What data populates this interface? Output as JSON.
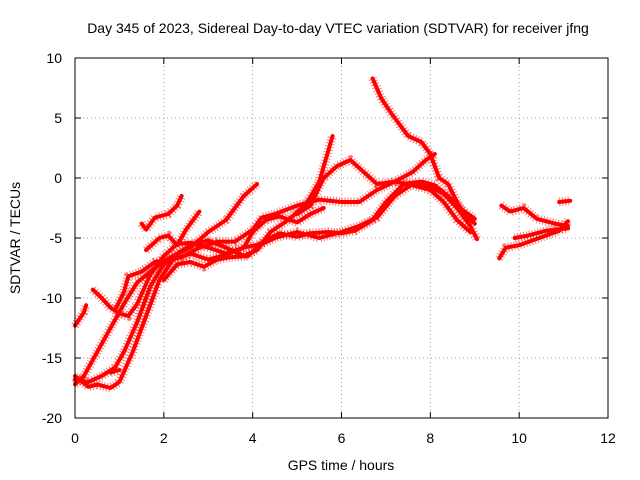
{
  "chart_data": {
    "type": "scatter",
    "title": "Day 345 of 2023, Sidereal Day-to-day VTEC variation (SDTVAR) for receiver jfng",
    "xlabel": "GPS time / hours",
    "ylabel": "SDTVAR / TECUs",
    "xlim": [
      0,
      12
    ],
    "ylim": [
      -20,
      10
    ],
    "xticks": [
      "0",
      "2",
      "4",
      "6",
      "8",
      "10",
      "12"
    ],
    "yticks": [
      "-20",
      "-15",
      "-10",
      "-5",
      "0",
      "5",
      "10"
    ],
    "grid": true,
    "marker": "plus",
    "color": "#ff0000",
    "series": [
      {
        "name": "s1",
        "points": [
          [
            0.0,
            -12.3
          ],
          [
            0.2,
            -11.2
          ],
          [
            0.25,
            -10.6
          ]
        ]
      },
      {
        "name": "s2",
        "points": [
          [
            0.0,
            -16.8
          ],
          [
            0.3,
            -17.0
          ],
          [
            0.6,
            -16.5
          ],
          [
            0.9,
            -15.8
          ],
          [
            1.1,
            -14.5
          ],
          [
            1.4,
            -12.0
          ],
          [
            1.7,
            -9.0
          ],
          [
            2.0,
            -7.2
          ],
          [
            2.3,
            -6.3
          ],
          [
            2.6,
            -5.6
          ],
          [
            3.0,
            -5.2
          ],
          [
            3.4,
            -5.8
          ],
          [
            3.8,
            -6.5
          ],
          [
            4.1,
            -6.0
          ],
          [
            4.4,
            -4.5
          ],
          [
            4.8,
            -3.5
          ],
          [
            5.2,
            -2.2
          ],
          [
            5.5,
            -0.3
          ],
          [
            5.8,
            3.5
          ]
        ]
      },
      {
        "name": "s3",
        "points": [
          [
            0.0,
            -17.2
          ],
          [
            0.2,
            -16.5
          ],
          [
            0.5,
            -14.5
          ],
          [
            0.8,
            -12.5
          ],
          [
            1.1,
            -10.5
          ],
          [
            1.4,
            -8.7
          ],
          [
            1.8,
            -7.5
          ],
          [
            2.2,
            -6.5
          ],
          [
            2.6,
            -5.8
          ],
          [
            3.0,
            -4.5
          ],
          [
            3.4,
            -3.5
          ],
          [
            3.8,
            -1.5
          ],
          [
            4.1,
            -0.5
          ]
        ]
      },
      {
        "name": "s4",
        "points": [
          [
            0.0,
            -16.5
          ],
          [
            0.3,
            -17.4
          ],
          [
            0.5,
            -17.2
          ],
          [
            0.8,
            -17.5
          ],
          [
            1.0,
            -17.0
          ],
          [
            1.3,
            -14.5
          ],
          [
            1.6,
            -11.5
          ],
          [
            1.9,
            -8.5
          ],
          [
            2.2,
            -6.8
          ],
          [
            2.6,
            -6.3
          ],
          [
            3.0,
            -6.8
          ],
          [
            3.4,
            -6.4
          ],
          [
            3.8,
            -5.8
          ],
          [
            4.0,
            -4.5
          ],
          [
            4.3,
            -3.5
          ],
          [
            4.6,
            -3.2
          ],
          [
            5.0,
            -3.7
          ],
          [
            5.3,
            -3.0
          ],
          [
            5.6,
            -2.5
          ]
        ]
      },
      {
        "name": "s5",
        "points": [
          [
            0.4,
            -9.3
          ],
          [
            0.6,
            -10.0
          ],
          [
            0.8,
            -10.8
          ],
          [
            1.0,
            -11.3
          ],
          [
            1.2,
            -11.5
          ],
          [
            1.4,
            -10.5
          ],
          [
            1.7,
            -8.0
          ],
          [
            2.0,
            -6.5
          ],
          [
            2.3,
            -5.5
          ],
          [
            2.6,
            -5.4
          ],
          [
            3.0,
            -5.8
          ],
          [
            3.4,
            -6.3
          ],
          [
            3.8,
            -5.8
          ],
          [
            4.2,
            -5.5
          ],
          [
            4.5,
            -5.0
          ],
          [
            5.0,
            -4.5
          ],
          [
            5.5,
            -5.0
          ],
          [
            6.0,
            -4.5
          ],
          [
            6.4,
            -4.0
          ],
          [
            6.8,
            -3.3
          ],
          [
            7.2,
            -1.5
          ],
          [
            7.6,
            -0.5
          ],
          [
            8.0,
            -0.8
          ],
          [
            8.3,
            -1.3
          ],
          [
            8.6,
            -2.5
          ],
          [
            8.9,
            -4.0
          ],
          [
            9.05,
            -5.1
          ]
        ]
      },
      {
        "name": "s6",
        "points": [
          [
            0.8,
            -16.2
          ],
          [
            1.0,
            -16.0
          ]
        ]
      },
      {
        "name": "s7",
        "points": [
          [
            0.9,
            -11.0
          ],
          [
            1.1,
            -9.5
          ],
          [
            1.2,
            -8.2
          ],
          [
            1.5,
            -7.8
          ],
          [
            1.8,
            -7.0
          ],
          [
            2.1,
            -6.8
          ],
          [
            2.4,
            -6.6
          ],
          [
            2.8,
            -5.8
          ],
          [
            3.2,
            -5.3
          ],
          [
            3.6,
            -5.3
          ],
          [
            4.0,
            -4.3
          ],
          [
            4.2,
            -3.3
          ],
          [
            4.5,
            -3.0
          ],
          [
            5.0,
            -2.3
          ],
          [
            5.5,
            -1.8
          ],
          [
            6.0,
            -2.0
          ],
          [
            6.4,
            -2.0
          ],
          [
            6.8,
            -1.0
          ],
          [
            7.2,
            -0.3
          ],
          [
            7.6,
            -0.6
          ],
          [
            8.0,
            -1.0
          ],
          [
            8.3,
            -2.0
          ],
          [
            8.6,
            -3.5
          ],
          [
            8.9,
            -4.5
          ]
        ]
      },
      {
        "name": "s8",
        "points": [
          [
            1.5,
            -3.8
          ],
          [
            1.6,
            -4.3
          ],
          [
            1.8,
            -3.3
          ],
          [
            2.1,
            -3.0
          ],
          [
            2.3,
            -2.3
          ],
          [
            2.4,
            -1.5
          ]
        ]
      },
      {
        "name": "s9",
        "points": [
          [
            1.6,
            -6.0
          ],
          [
            1.9,
            -5.0
          ],
          [
            2.1,
            -4.8
          ],
          [
            2.3,
            -5.6
          ],
          [
            2.5,
            -4.3
          ],
          [
            2.8,
            -2.8
          ]
        ]
      },
      {
        "name": "s10",
        "points": [
          [
            2.0,
            -8.5
          ],
          [
            2.3,
            -7.2
          ],
          [
            2.6,
            -7.0
          ],
          [
            2.9,
            -7.4
          ],
          [
            3.2,
            -6.8
          ],
          [
            3.5,
            -6.6
          ],
          [
            3.9,
            -6.5
          ],
          [
            4.2,
            -5.4
          ],
          [
            4.6,
            -4.6
          ],
          [
            5.0,
            -4.9
          ],
          [
            5.3,
            -4.6
          ],
          [
            5.7,
            -4.5
          ],
          [
            6.0,
            -4.6
          ],
          [
            6.3,
            -4.4
          ],
          [
            6.7,
            -3.5
          ],
          [
            7.0,
            -2.0
          ],
          [
            7.4,
            -0.5
          ],
          [
            7.8,
            -0.3
          ],
          [
            8.1,
            -0.6
          ],
          [
            8.4,
            -1.5
          ],
          [
            8.7,
            -2.6
          ],
          [
            9.0,
            -3.4
          ]
        ]
      },
      {
        "name": "s11",
        "points": [
          [
            5.0,
            -3.0
          ],
          [
            5.3,
            -2.3
          ],
          [
            5.6,
            0.0
          ],
          [
            5.9,
            1.0
          ],
          [
            6.2,
            1.5
          ],
          [
            6.5,
            0.5
          ],
          [
            6.8,
            -0.5
          ],
          [
            7.2,
            -0.3
          ],
          [
            7.6,
            0.5
          ],
          [
            7.9,
            1.5
          ],
          [
            8.1,
            2.0
          ]
        ]
      },
      {
        "name": "s12",
        "points": [
          [
            6.7,
            8.3
          ],
          [
            6.9,
            6.6
          ],
          [
            7.1,
            5.5
          ],
          [
            7.3,
            4.5
          ],
          [
            7.5,
            3.5
          ],
          [
            7.8,
            3.0
          ],
          [
            8.0,
            2.0
          ],
          [
            8.2,
            0.0
          ],
          [
            8.4,
            -0.5
          ],
          [
            8.6,
            -2.0
          ],
          [
            8.8,
            -3.2
          ],
          [
            9.0,
            -3.8
          ]
        ]
      },
      {
        "name": "s13",
        "points": [
          [
            9.55,
            -6.7
          ],
          [
            9.7,
            -5.8
          ],
          [
            10.0,
            -5.6
          ],
          [
            10.3,
            -5.2
          ],
          [
            10.6,
            -4.8
          ],
          [
            10.9,
            -4.4
          ],
          [
            11.1,
            -3.6
          ]
        ]
      },
      {
        "name": "s14",
        "points": [
          [
            9.6,
            -2.3
          ],
          [
            9.8,
            -2.8
          ],
          [
            10.1,
            -2.5
          ],
          [
            10.4,
            -3.4
          ],
          [
            10.8,
            -3.8
          ],
          [
            11.1,
            -4.0
          ]
        ]
      },
      {
        "name": "s15",
        "points": [
          [
            9.9,
            -5.0
          ],
          [
            10.2,
            -4.8
          ],
          [
            10.6,
            -4.4
          ],
          [
            11.1,
            -4.2
          ]
        ]
      },
      {
        "name": "s16",
        "points": [
          [
            10.9,
            -2.0
          ],
          [
            11.15,
            -1.9
          ]
        ]
      }
    ]
  }
}
